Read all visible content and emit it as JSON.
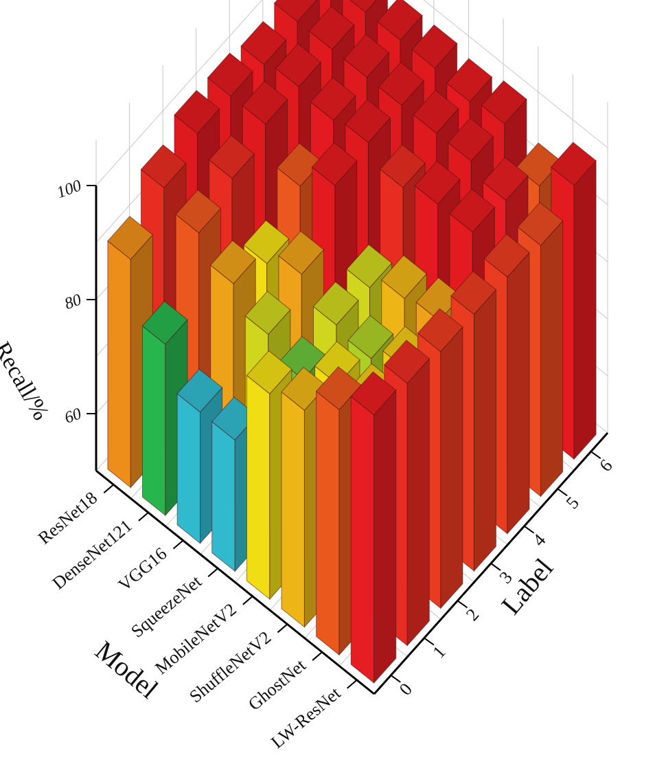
{
  "chart_data": {
    "type": "bar3d",
    "title": "",
    "xlabel": "Model",
    "ylabel": "Label",
    "zlabel": "Recall/%",
    "models": [
      "ResNet18",
      "DenseNet121",
      "VGG16",
      "SqueezeNet",
      "MobileNetV2",
      "ShuffleNetV2",
      "GhostNet",
      "LW-ResNet"
    ],
    "labels": [
      "0",
      "1",
      "2",
      "3",
      "4",
      "5",
      "6"
    ],
    "z_ticks": [
      "60",
      "80",
      "100"
    ],
    "zlim": [
      50,
      100
    ],
    "values": [
      [
        90,
        96,
        99,
        99,
        98,
        99,
        99
      ],
      [
        80,
        93,
        96,
        99,
        99,
        99,
        99
      ],
      [
        73,
        89,
        86,
        93,
        98,
        99,
        99
      ],
      [
        73,
        85,
        89,
        98,
        99,
        99,
        99
      ],
      [
        86,
        82,
        85,
        85,
        96,
        99,
        98
      ],
      [
        88,
        86,
        84,
        88,
        98,
        99,
        99
      ],
      [
        93,
        87,
        87,
        89,
        98,
        97,
        93
      ],
      [
        97,
        96,
        95,
        95,
        95,
        94,
        98
      ]
    ],
    "colormap": "value: blue (low) -> cyan -> green -> yellow -> orange -> red (high)"
  }
}
